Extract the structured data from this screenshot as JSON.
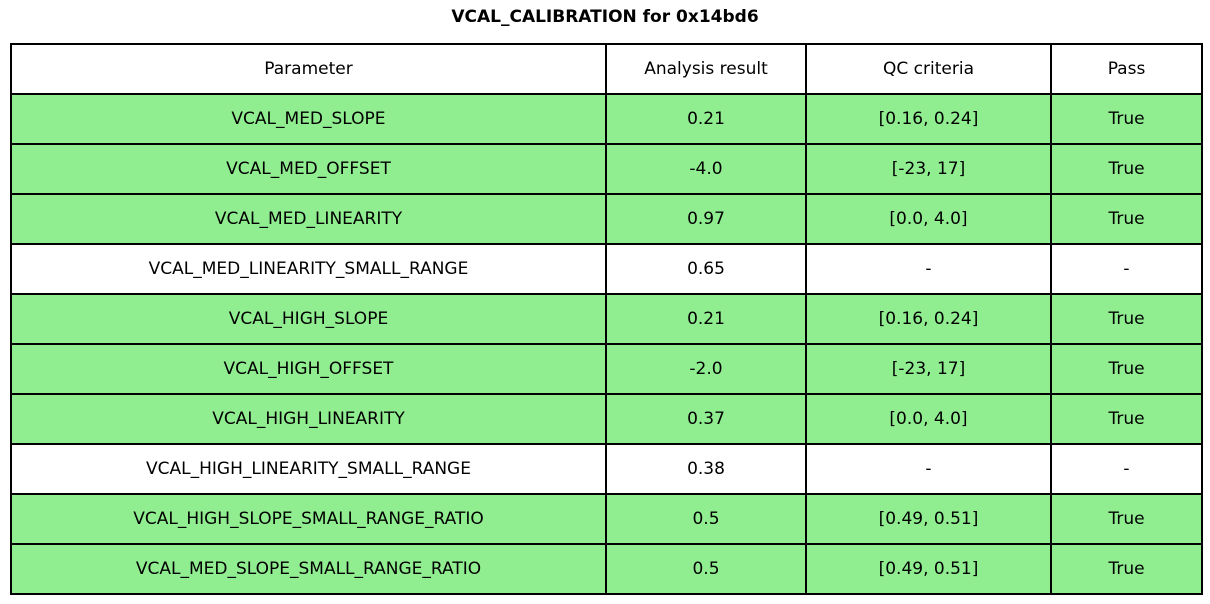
{
  "chart_data": {
    "type": "table",
    "title": "VCAL_CALIBRATION for 0x14bd6",
    "columns": [
      "Parameter",
      "Analysis result",
      "QC criteria",
      "Pass"
    ],
    "rows": [
      {
        "parameter": "VCAL_MED_SLOPE",
        "analysis_result": "0.21",
        "qc_criteria": "[0.16, 0.24]",
        "pass": "True",
        "highlighted": true
      },
      {
        "parameter": "VCAL_MED_OFFSET",
        "analysis_result": "-4.0",
        "qc_criteria": "[-23, 17]",
        "pass": "True",
        "highlighted": true
      },
      {
        "parameter": "VCAL_MED_LINEARITY",
        "analysis_result": "0.97",
        "qc_criteria": "[0.0, 4.0]",
        "pass": "True",
        "highlighted": true
      },
      {
        "parameter": "VCAL_MED_LINEARITY_SMALL_RANGE",
        "analysis_result": "0.65",
        "qc_criteria": "-",
        "pass": "-",
        "highlighted": false
      },
      {
        "parameter": "VCAL_HIGH_SLOPE",
        "analysis_result": "0.21",
        "qc_criteria": "[0.16, 0.24]",
        "pass": "True",
        "highlighted": true
      },
      {
        "parameter": "VCAL_HIGH_OFFSET",
        "analysis_result": "-2.0",
        "qc_criteria": "[-23, 17]",
        "pass": "True",
        "highlighted": true
      },
      {
        "parameter": "VCAL_HIGH_LINEARITY",
        "analysis_result": "0.37",
        "qc_criteria": "[0.0, 4.0]",
        "pass": "True",
        "highlighted": true
      },
      {
        "parameter": "VCAL_HIGH_LINEARITY_SMALL_RANGE",
        "analysis_result": "0.38",
        "qc_criteria": "-",
        "pass": "-",
        "highlighted": false
      },
      {
        "parameter": "VCAL_HIGH_SLOPE_SMALL_RANGE_RATIO",
        "analysis_result": "0.5",
        "qc_criteria": "[0.49, 0.51]",
        "pass": "True",
        "highlighted": true
      },
      {
        "parameter": "VCAL_MED_SLOPE_SMALL_RANGE_RATIO",
        "analysis_result": "0.5",
        "qc_criteria": "[0.49, 0.51]",
        "pass": "True",
        "highlighted": true
      }
    ],
    "highlight_color": "#90EE90",
    "layout": {
      "grid": true,
      "header_background": "#ffffff",
      "border_color": "#000000",
      "text_align": "center",
      "legend_position": "none"
    }
  }
}
